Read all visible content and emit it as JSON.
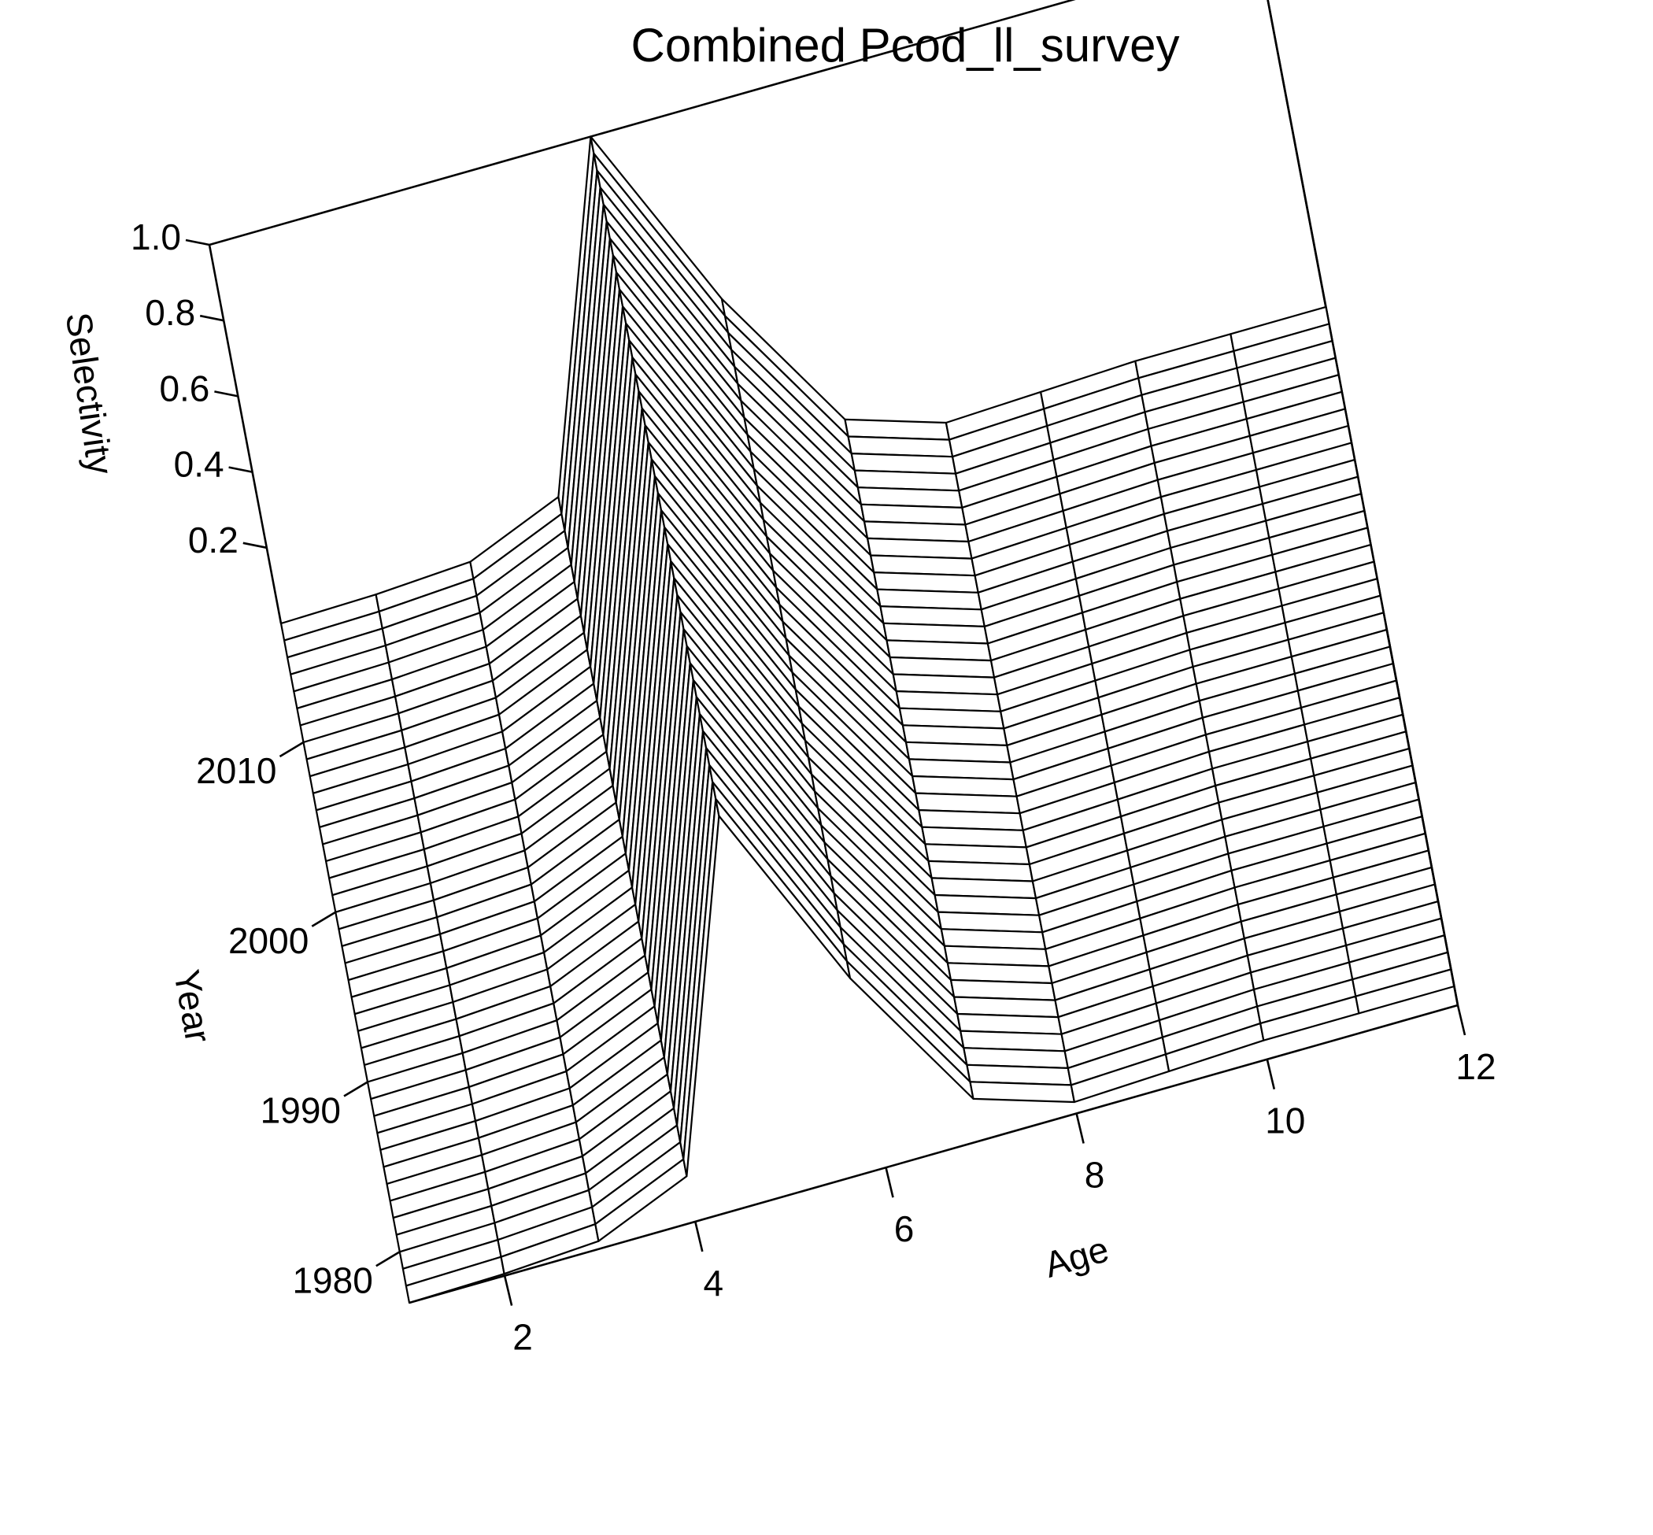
{
  "chart_data": {
    "type": "surface",
    "title": "Combined Pcod_ll_survey",
    "xlabel": "Age",
    "ylabel": "Year",
    "zlabel": "Selectivity",
    "x_ticks": [
      "2",
      "4",
      "6",
      "8",
      "10",
      "12"
    ],
    "y_ticks": [
      "1980",
      "1990",
      "2000",
      "2010"
    ],
    "z_ticks": [
      "0.2",
      "0.4",
      "0.6",
      "0.8",
      "1.0"
    ],
    "xlim": [
      1,
      12
    ],
    "ylim": [
      1977,
      2017
    ],
    "zlim": [
      0,
      1
    ],
    "years": [
      1977,
      1978,
      1979,
      1980,
      1981,
      1982,
      1983,
      1984,
      1985,
      1986,
      1987,
      1988,
      1989,
      1990,
      1991,
      1992,
      1993,
      1994,
      1995,
      1996,
      1997,
      1998,
      1999,
      2000,
      2001,
      2002,
      2003,
      2004,
      2005,
      2006,
      2007,
      2008,
      2009,
      2010,
      2011,
      2012,
      2013,
      2014,
      2015,
      2016,
      2017
    ],
    "ages": [
      1,
      2,
      3,
      4,
      5,
      6,
      7,
      8,
      9,
      10,
      11,
      12
    ],
    "selectivity_by_age": [
      0,
      0.005,
      0.02,
      0.12,
      1.0,
      0.5,
      0.11,
      0.03,
      0.04,
      0.05,
      0.05,
      0.05
    ]
  }
}
